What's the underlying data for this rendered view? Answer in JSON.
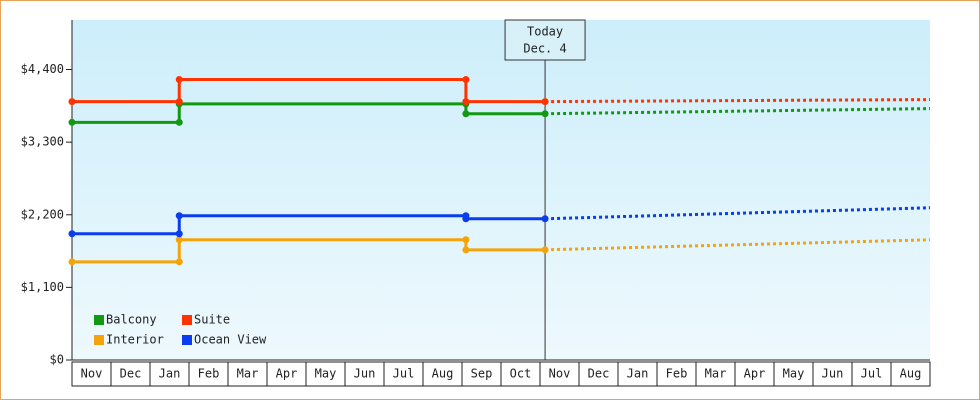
{
  "chart_data": {
    "type": "line",
    "categories": [
      "Nov",
      "Dec",
      "Jan",
      "Feb",
      "Mar",
      "Apr",
      "May",
      "Jun",
      "Jul",
      "Aug",
      "Sep",
      "Oct",
      "Nov",
      "Dec",
      "Jan",
      "Feb",
      "Mar",
      "Apr",
      "May",
      "Jun",
      "Jul",
      "Aug"
    ],
    "xlim": [
      0,
      22
    ],
    "ylim": [
      0,
      5150
    ],
    "yticks": [
      {
        "value": 0,
        "label": "$0"
      },
      {
        "value": 1100,
        "label": "$1,100"
      },
      {
        "value": 2200,
        "label": "$2,200"
      },
      {
        "value": 3300,
        "label": "$3,300"
      },
      {
        "value": 4400,
        "label": "$4,400"
      }
    ],
    "annotation": {
      "lines": [
        "Today",
        "Dec. 4"
      ],
      "x": 12.13
    },
    "legend": "lower left",
    "series": [
      {
        "name": "Balcony",
        "color": "#119911",
        "x": [
          0,
          2.75,
          2.75,
          10.1,
          10.1,
          12.13
        ],
        "values": [
          3600,
          3600,
          3880,
          3880,
          3730,
          3730
        ],
        "forecast_x": [
          12.13,
          22
        ],
        "forecast_values": [
          3730,
          3808
        ]
      },
      {
        "name": "Suite",
        "color": "#ff3300",
        "x": [
          0,
          2.75,
          2.75,
          10.1,
          10.1,
          12.13
        ],
        "values": [
          3914,
          3914,
          4248,
          4248,
          3914,
          3914
        ],
        "forecast_x": [
          12.13,
          22
        ],
        "forecast_values": [
          3914,
          3945
        ]
      },
      {
        "name": "Interior",
        "color": "#f5a30a",
        "x": [
          0,
          2.75,
          2.75,
          10.1,
          10.1,
          12.13
        ],
        "values": [
          1487,
          1487,
          1821,
          1821,
          1669,
          1669
        ],
        "forecast_x": [
          12.13,
          22
        ],
        "forecast_values": [
          1669,
          1821
        ]
      },
      {
        "name": "Ocean View",
        "color": "#0a3cf0",
        "x": [
          0,
          2.75,
          2.75,
          10.1,
          10.1,
          12.13
        ],
        "values": [
          1912,
          1912,
          2185,
          2185,
          2139,
          2139
        ],
        "forecast_x": [
          12.13,
          22
        ],
        "forecast_values": [
          2139,
          2306
        ]
      }
    ]
  }
}
